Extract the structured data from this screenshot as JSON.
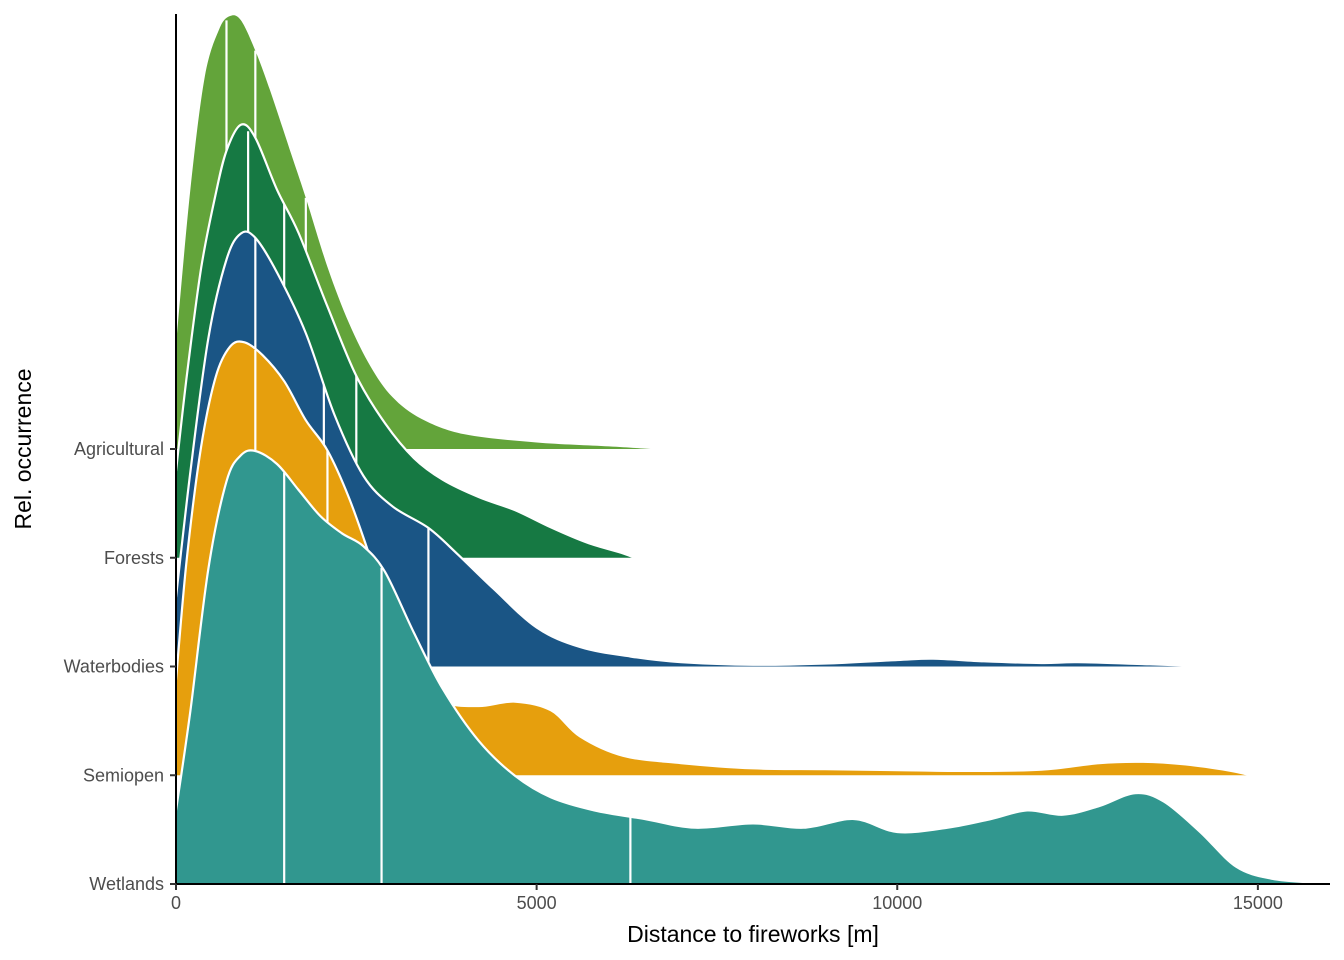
{
  "chart_data": {
    "type": "ridgeline",
    "title": "",
    "xlabel": "Distance to fireworks [m]",
    "ylabel": "Rel. occurrence",
    "xlim": [
      0,
      16000
    ],
    "x_ticks": [
      "0",
      "5000",
      "10000",
      "15000"
    ],
    "x_tick_values": [
      0,
      5000,
      10000,
      15000
    ],
    "grid": false,
    "legend": "none",
    "quantile_lines": "white vertical lines marking quantiles",
    "series": [
      {
        "name": "Agricultural",
        "color": "#63A43A",
        "density_points": [
          [
            0,
            0.24
          ],
          [
            200,
            0.6
          ],
          [
            400,
            0.86
          ],
          [
            600,
            0.97
          ],
          [
            750,
            1.0
          ],
          [
            900,
            0.99
          ],
          [
            1100,
            0.92
          ],
          [
            1300,
            0.83
          ],
          [
            1600,
            0.68
          ],
          [
            1800,
            0.58
          ],
          [
            2100,
            0.42
          ],
          [
            2400,
            0.29
          ],
          [
            2700,
            0.19
          ],
          [
            3000,
            0.12
          ],
          [
            3400,
            0.07
          ],
          [
            4000,
            0.034
          ],
          [
            5000,
            0.015
          ],
          [
            6000,
            0.006
          ],
          [
            6600,
            0.0
          ]
        ],
        "x_end": 6600,
        "quantile_lines_x": [
          700,
          1100,
          1800
        ]
      },
      {
        "name": "Forests",
        "color": "#167943",
        "density_points": [
          [
            0,
            0.2
          ],
          [
            150,
            0.42
          ],
          [
            350,
            0.67
          ],
          [
            550,
            0.84
          ],
          [
            700,
            0.94
          ],
          [
            900,
            1.0
          ],
          [
            1100,
            0.97
          ],
          [
            1400,
            0.85
          ],
          [
            1700,
            0.75
          ],
          [
            2100,
            0.58
          ],
          [
            2500,
            0.42
          ],
          [
            2900,
            0.31
          ],
          [
            3300,
            0.23
          ],
          [
            3700,
            0.18
          ],
          [
            4200,
            0.14
          ],
          [
            4700,
            0.11
          ],
          [
            5200,
            0.07
          ],
          [
            5700,
            0.035
          ],
          [
            6200,
            0.01
          ],
          [
            6350,
            0.0
          ]
        ],
        "x_end": 6350,
        "quantile_lines_x": [
          1000,
          1500,
          2500
        ]
      },
      {
        "name": "Waterbodies",
        "color": "#1A5585",
        "density_points": [
          [
            0,
            0.16
          ],
          [
            200,
            0.45
          ],
          [
            450,
            0.76
          ],
          [
            700,
            0.94
          ],
          [
            900,
            1.0
          ],
          [
            1100,
            0.99
          ],
          [
            1400,
            0.91
          ],
          [
            1800,
            0.77
          ],
          [
            2200,
            0.58
          ],
          [
            2600,
            0.44
          ],
          [
            3000,
            0.37
          ],
          [
            3500,
            0.32
          ],
          [
            3900,
            0.26
          ],
          [
            4400,
            0.18
          ],
          [
            5000,
            0.09
          ],
          [
            5600,
            0.045
          ],
          [
            6300,
            0.023
          ],
          [
            7000,
            0.01
          ],
          [
            8000,
            0.004
          ],
          [
            9000,
            0.007
          ],
          [
            10000,
            0.015
          ],
          [
            10500,
            0.018
          ],
          [
            11200,
            0.012
          ],
          [
            12000,
            0.008
          ],
          [
            12500,
            0.01
          ],
          [
            13500,
            0.005
          ],
          [
            14400,
            0.0
          ]
        ],
        "x_end": 14400,
        "quantile_lines_x": [
          1100,
          2050,
          3500
        ]
      },
      {
        "name": "Semiopen",
        "color": "#E69F0D",
        "density_points": [
          [
            0,
            0.22
          ],
          [
            150,
            0.5
          ],
          [
            350,
            0.76
          ],
          [
            550,
            0.92
          ],
          [
            750,
            0.99
          ],
          [
            950,
            1.0
          ],
          [
            1200,
            0.97
          ],
          [
            1500,
            0.91
          ],
          [
            1800,
            0.82
          ],
          [
            2100,
            0.75
          ],
          [
            2400,
            0.64
          ],
          [
            2700,
            0.5
          ],
          [
            3000,
            0.35
          ],
          [
            3300,
            0.23
          ],
          [
            3700,
            0.17
          ],
          [
            4200,
            0.16
          ],
          [
            4700,
            0.17
          ],
          [
            5200,
            0.15
          ],
          [
            5600,
            0.09
          ],
          [
            6200,
            0.045
          ],
          [
            7000,
            0.028
          ],
          [
            8000,
            0.016
          ],
          [
            9000,
            0.014
          ],
          [
            10000,
            0.012
          ],
          [
            11000,
            0.01
          ],
          [
            12000,
            0.013
          ],
          [
            12800,
            0.028
          ],
          [
            13400,
            0.031
          ],
          [
            14000,
            0.025
          ],
          [
            14600,
            0.011
          ],
          [
            14900,
            0.0
          ]
        ],
        "x_end": 14900,
        "quantile_lines_x": [
          1100,
          2100,
          3650
        ]
      },
      {
        "name": "Wetlands",
        "color": "#31978F",
        "density_points": [
          [
            0,
            0.17
          ],
          [
            200,
            0.4
          ],
          [
            450,
            0.73
          ],
          [
            700,
            0.93
          ],
          [
            900,
            0.99
          ],
          [
            1100,
            1.0
          ],
          [
            1400,
            0.97
          ],
          [
            1700,
            0.91
          ],
          [
            2000,
            0.85
          ],
          [
            2300,
            0.81
          ],
          [
            2600,
            0.78
          ],
          [
            2900,
            0.72
          ],
          [
            3300,
            0.58
          ],
          [
            3700,
            0.45
          ],
          [
            4200,
            0.33
          ],
          [
            4700,
            0.25
          ],
          [
            5200,
            0.2
          ],
          [
            5800,
            0.17
          ],
          [
            6500,
            0.15
          ],
          [
            7200,
            0.13
          ],
          [
            8000,
            0.14
          ],
          [
            8700,
            0.13
          ],
          [
            9400,
            0.15
          ],
          [
            10000,
            0.12
          ],
          [
            10700,
            0.13
          ],
          [
            11300,
            0.15
          ],
          [
            11800,
            0.17
          ],
          [
            12300,
            0.16
          ],
          [
            12800,
            0.18
          ],
          [
            13300,
            0.21
          ],
          [
            13700,
            0.19
          ],
          [
            14200,
            0.12
          ],
          [
            14700,
            0.04
          ],
          [
            15200,
            0.012
          ],
          [
            15800,
            0.003
          ],
          [
            16000,
            0.0
          ]
        ],
        "x_end": 16000,
        "quantile_lines_x": [
          1500,
          2850,
          6300
        ]
      }
    ]
  }
}
